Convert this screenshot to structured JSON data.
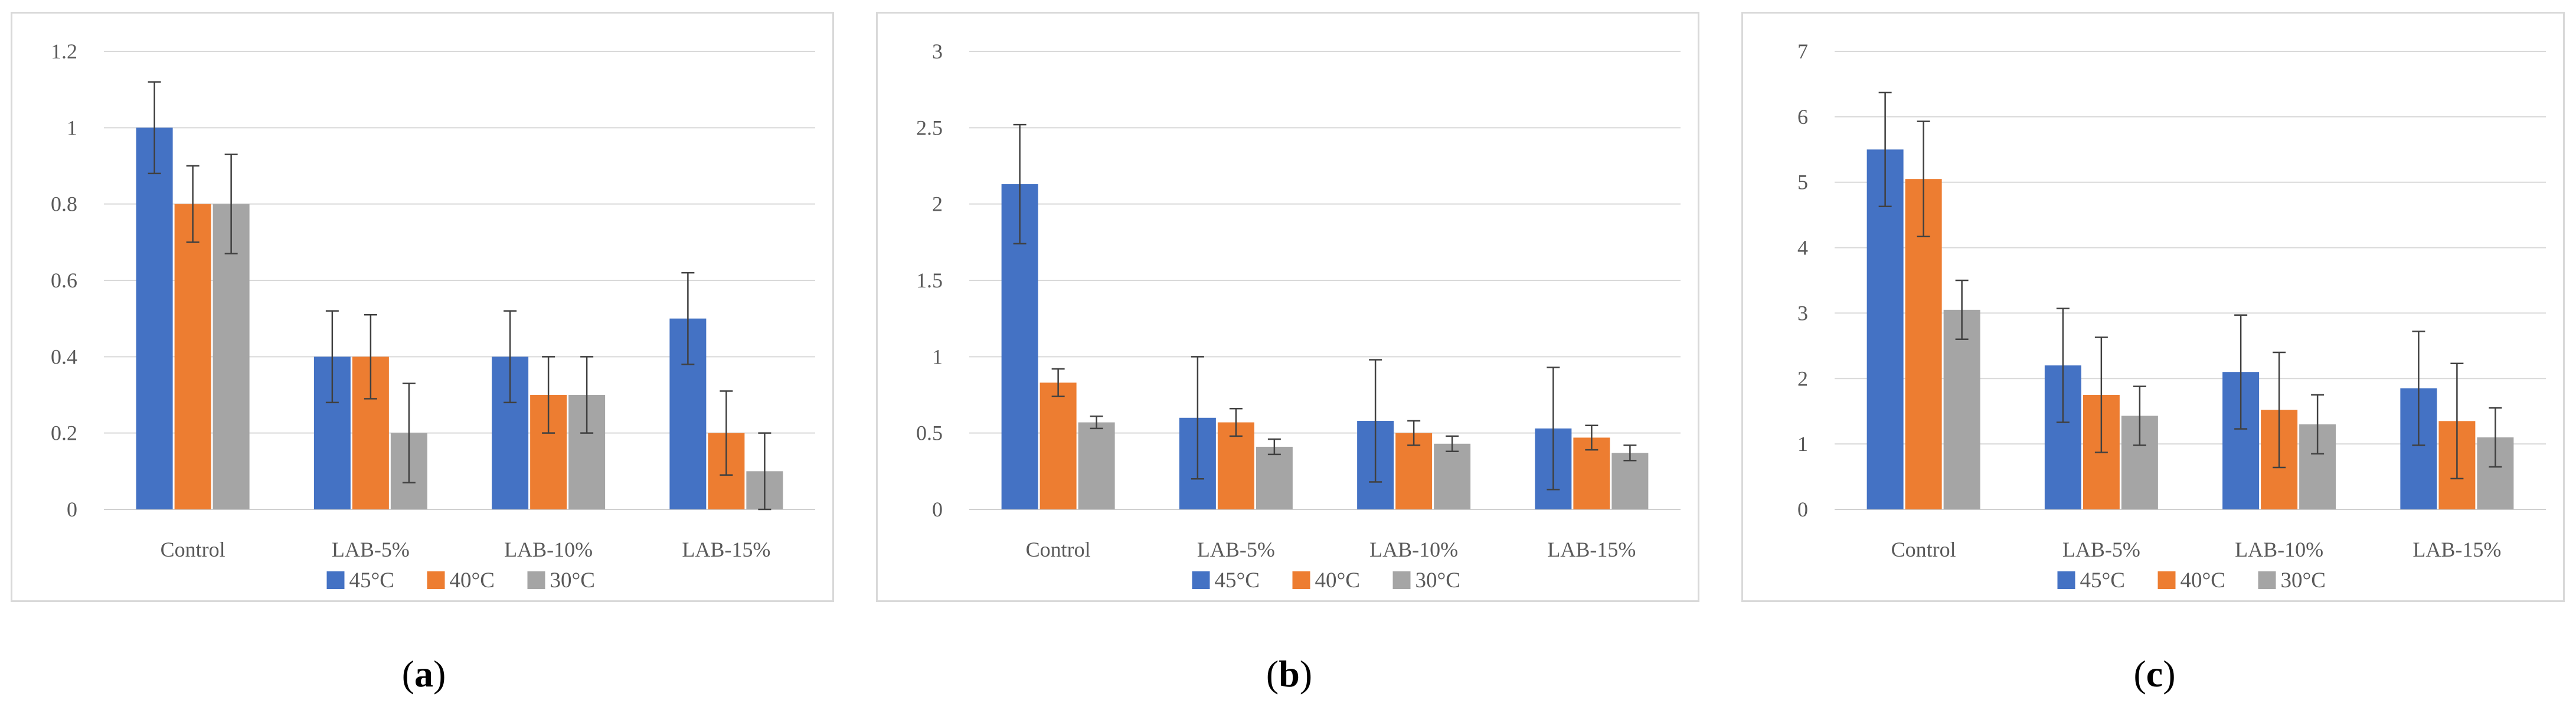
{
  "chart_data": [
    {
      "type": "bar",
      "panel_label": "a",
      "categories": [
        "Control",
        "LAB-5%",
        "LAB-10%",
        "LAB-15%"
      ],
      "series": [
        {
          "name": "45°C",
          "color": "#4472c4",
          "values": [
            1.0,
            0.4,
            0.4,
            0.5
          ],
          "errors": [
            0.12,
            0.12,
            0.12,
            0.12
          ]
        },
        {
          "name": "40°C",
          "color": "#ed7d31",
          "values": [
            0.8,
            0.4,
            0.3,
            0.2
          ],
          "errors": [
            0.1,
            0.11,
            0.1,
            0.11
          ]
        },
        {
          "name": "30°C",
          "color": "#a5a5a5",
          "values": [
            0.8,
            0.2,
            0.3,
            0.1
          ],
          "errors": [
            0.13,
            0.13,
            0.1,
            0.1
          ]
        }
      ],
      "ylim": [
        0,
        1.2
      ],
      "yticks": [
        "0",
        "0.2",
        "0.4",
        "0.6",
        "0.8",
        "1",
        "1.2"
      ],
      "gridlines": true,
      "legend_position": "bottom"
    },
    {
      "type": "bar",
      "panel_label": "b",
      "categories": [
        "Control",
        "LAB-5%",
        "LAB-10%",
        "LAB-15%"
      ],
      "series": [
        {
          "name": "45°C",
          "color": "#4472c4",
          "values": [
            2.13,
            0.6,
            0.58,
            0.53
          ],
          "errors": [
            0.39,
            0.4,
            0.4,
            0.4
          ]
        },
        {
          "name": "40°C",
          "color": "#ed7d31",
          "values": [
            0.83,
            0.57,
            0.5,
            0.47
          ],
          "errors": [
            0.09,
            0.09,
            0.08,
            0.08
          ]
        },
        {
          "name": "30°C",
          "color": "#a5a5a5",
          "values": [
            0.57,
            0.41,
            0.43,
            0.37
          ],
          "errors": [
            0.04,
            0.05,
            0.05,
            0.05
          ]
        }
      ],
      "ylim": [
        0,
        3
      ],
      "yticks": [
        "0",
        "0.5",
        "1",
        "1.5",
        "2",
        "2.5",
        "3"
      ],
      "gridlines": true,
      "legend_position": "bottom"
    },
    {
      "type": "bar",
      "panel_label": "c",
      "categories": [
        "Control",
        "LAB-5%",
        "LAB-10%",
        "LAB-15%"
      ],
      "series": [
        {
          "name": "45°C",
          "color": "#4472c4",
          "values": [
            5.5,
            2.2,
            2.1,
            1.85
          ],
          "errors": [
            0.87,
            0.87,
            0.87,
            0.87
          ]
        },
        {
          "name": "40°C",
          "color": "#ed7d31",
          "values": [
            5.05,
            1.75,
            1.52,
            1.35
          ],
          "errors": [
            0.88,
            0.88,
            0.88,
            0.88
          ]
        },
        {
          "name": "30°C",
          "color": "#a5a5a5",
          "values": [
            3.05,
            1.43,
            1.3,
            1.1
          ],
          "errors": [
            0.45,
            0.45,
            0.45,
            0.45
          ]
        }
      ],
      "ylim": [
        0,
        7
      ],
      "yticks": [
        "0",
        "1",
        "2",
        "3",
        "4",
        "5",
        "6",
        "7"
      ],
      "gridlines": true,
      "legend_position": "bottom"
    }
  ],
  "captions": [
    "a",
    "b",
    "c"
  ]
}
